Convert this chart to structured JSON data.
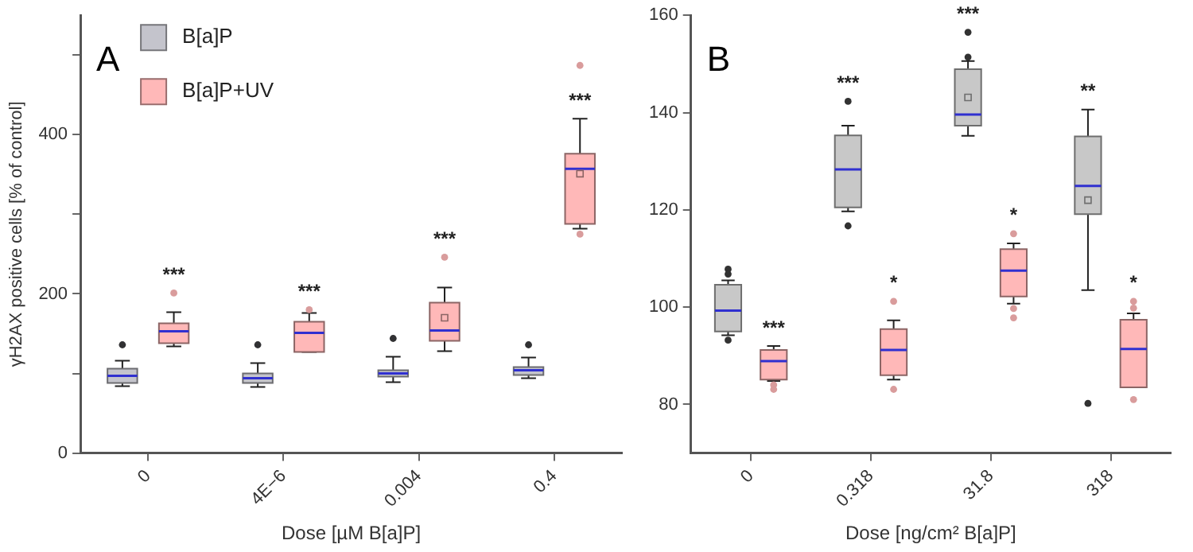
{
  "chart_data": [
    {
      "type": "box",
      "title": "A",
      "xlabel": "Dose [µM B[a]P]",
      "ylabel": "γH2AX positive cells [% of control]",
      "categories": [
        "0",
        "4E−6",
        "0.004",
        "0.4"
      ],
      "ylim": [
        0,
        550
      ],
      "yticks": [
        0,
        {
          "value": 100,
          "label": null
        },
        200,
        {
          "value": 300,
          "label": null
        },
        400,
        {
          "value": 500,
          "label": null
        }
      ],
      "legend": "top left",
      "series": [
        {
          "name": "B[a]P",
          "color": "#c4c4cc",
          "boxes": [
            {
              "low": 84,
              "q1": 88,
              "median": 97,
              "q3": 106,
              "high": 116,
              "outliers": [
                136
              ]
            },
            {
              "low": 83,
              "q1": 88,
              "median": 94,
              "q3": 100,
              "high": 113,
              "outliers": [
                136
              ]
            },
            {
              "low": 89,
              "q1": 96,
              "median": 100,
              "q3": 104,
              "high": 121,
              "outliers": [
                144
              ]
            },
            {
              "low": 94,
              "q1": 98,
              "median": 104,
              "q3": 108,
              "high": 120,
              "outliers": [
                136
              ]
            }
          ]
        },
        {
          "name": "B[a]P+UV",
          "color": "#ffb8b8",
          "boxes": [
            {
              "low": 134,
              "q1": 138,
              "median": 153,
              "q3": 163,
              "high": 177,
              "outliers": [
                201
              ]
            },
            {
              "low": 127,
              "q1": 127,
              "median": 151,
              "q3": 165,
              "high": 176,
              "outliers": [
                180
              ]
            },
            {
              "low": 128,
              "q1": 141,
              "median": 154,
              "q3": 189,
              "high": 208,
              "mean": 170,
              "outliers": [
                246
              ]
            },
            {
              "low": 282,
              "q1": 288,
              "median": 357,
              "q3": 376,
              "high": 420,
              "mean": 351,
              "outliers": [
                487,
                275
              ]
            }
          ]
        }
      ],
      "annotations": [
        null,
        "***",
        null,
        "***",
        null,
        "***",
        null,
        "***"
      ]
    },
    {
      "type": "box",
      "title": "B",
      "xlabel": "Dose [ng/cm² B[a]P]",
      "categories": [
        "0",
        "0.318",
        "31.8",
        "318"
      ],
      "ylim": [
        70,
        160
      ],
      "yticks": [
        80,
        100,
        120,
        140,
        160
      ],
      "series": [
        {
          "color": "#c8c8c8",
          "boxes": [
            {
              "low": 94.2,
              "q1": 95,
              "median": 99.3,
              "q3": 104.6,
              "high": 105.5,
              "outliers": [
                107.8,
                106.8,
                93.2
              ]
            },
            {
              "low": 119.7,
              "q1": 120.5,
              "median": 128.3,
              "q3": 135.3,
              "high": 137.3,
              "outliers": [
                142.3,
                116.7
              ]
            },
            {
              "low": 135.2,
              "q1": 137.3,
              "median": 139.6,
              "q3": 148.9,
              "high": 150.6,
              "mean": 143.1,
              "outliers": [
                151.4,
                156.5
              ]
            },
            {
              "low": 103.5,
              "q1": 119.1,
              "median": 124.9,
              "q3": 135.1,
              "high": 140.6,
              "mean": 122,
              "outliers": [
                80.2
              ]
            }
          ]
        },
        {
          "color": "#ffb8b8",
          "boxes": [
            {
              "low": 84.8,
              "q1": 85.1,
              "median": 88.9,
              "q3": 91.2,
              "high": 92,
              "outliers": [
                84,
                83.1
              ]
            },
            {
              "low": 85.1,
              "q1": 86,
              "median": 91.2,
              "q3": 95.5,
              "high": 97.3,
              "outliers": [
                101.2,
                83.1
              ]
            },
            {
              "low": 100.7,
              "q1": 102.2,
              "median": 107.5,
              "q3": 111.9,
              "high": 113.1,
              "outliers": [
                115.1,
                99.7,
                97.8
              ]
            },
            {
              "low": 83.5,
              "q1": 83.5,
              "median": 91.4,
              "q3": 97.4,
              "high": 98.7,
              "outliers": [
                101.2,
                99.8,
                81
              ]
            }
          ]
        }
      ],
      "annotations": [
        null,
        "***",
        "***",
        "*",
        "***",
        "*",
        "**",
        "*"
      ]
    }
  ]
}
